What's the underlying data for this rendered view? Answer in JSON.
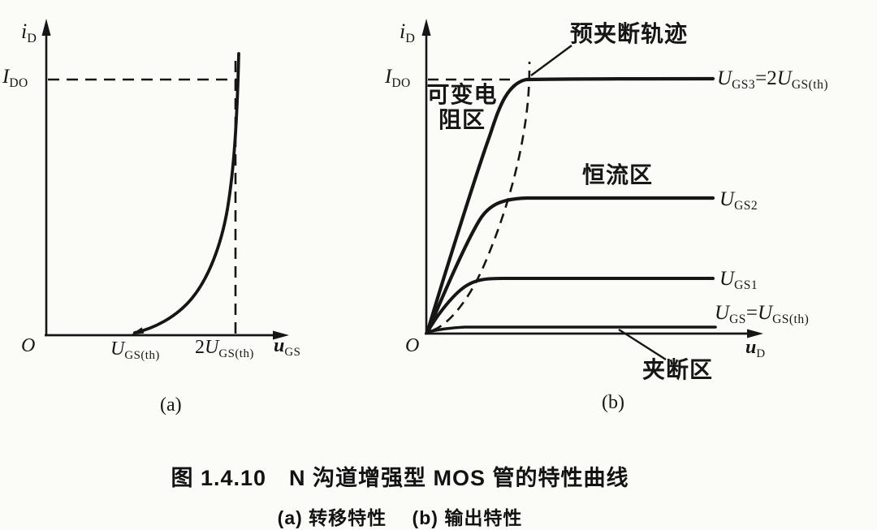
{
  "ink_color": "#161616",
  "paper_color": "#fbfbf8",
  "plot_a": {
    "y_axis_label": [
      {
        "i": "i"
      },
      {
        "sub": "D"
      }
    ],
    "y_tick": [
      {
        "i": "I"
      },
      {
        "sub": "DO"
      }
    ],
    "origin": "O",
    "x_tick_1": [
      {
        "i": "U"
      },
      {
        "sub": "GS(th)"
      }
    ],
    "x_tick_2": [
      "2",
      {
        "i": "U"
      },
      {
        "sub": "GS(th)"
      }
    ],
    "x_axis_label": [
      {
        "i": "u"
      },
      {
        "sub": "GS"
      }
    ],
    "sublabel": "(a)"
  },
  "plot_b": {
    "y_axis_label": [
      {
        "i": "i"
      },
      {
        "sub": "D"
      }
    ],
    "y_tick": [
      {
        "i": "I"
      },
      {
        "sub": "DO"
      }
    ],
    "origin": "O",
    "x_axis_label": [
      {
        "i": "u"
      },
      {
        "sub": "D"
      }
    ],
    "sublabel": "(b)",
    "locus_label": "预夹断轨迹",
    "region_variable_resistance": "可变电\n阻区",
    "region_constant_current": "恒流区",
    "region_pinch_off": "夹断区",
    "curve_label_3": [
      {
        "i": "U"
      },
      {
        "sub": "GS3"
      },
      "=2",
      {
        "i": "U"
      },
      {
        "sub": "GS(th)"
      }
    ],
    "curve_label_2": [
      {
        "i": "U"
      },
      {
        "sub": "GS2"
      }
    ],
    "curve_label_1": [
      {
        "i": "U"
      },
      {
        "sub": "GS1"
      }
    ],
    "curve_label_0": [
      {
        "i": "U"
      },
      {
        "sub": "GS"
      },
      "=",
      {
        "i": "U"
      },
      {
        "sub": "GS(th)"
      }
    ]
  },
  "caption": {
    "line1": "图 1.4.10　N 沟道增强型 MOS 管的特性曲线",
    "line2": "(a) 转移特性　 (b) 输出特性"
  },
  "chart_data": [
    {
      "type": "line",
      "title": "(a) 转移特性 (transfer characteristic of N-channel enhancement MOSFET)",
      "xlabel": "u_GS",
      "ylabel": "i_D",
      "x_tick_labels": [
        "O",
        "U_GS(th)",
        "2U_GS(th)"
      ],
      "y_tick_labels": [
        "I_DO"
      ],
      "grid": false,
      "series": [
        {
          "name": "i_D vs u_GS",
          "note": "square-law curve: i_D = 0 for u_GS < U_GS(th); i_D = I_DO at u_GS = 2U_GS(th)",
          "x_over_UGSth": [
            1.0,
            1.2,
            1.4,
            1.6,
            1.8,
            1.9,
            2.0
          ],
          "y_over_IDO": [
            0.0,
            0.04,
            0.16,
            0.36,
            0.64,
            0.81,
            1.0
          ]
        }
      ],
      "annotations": [
        "dashed guide at i_D = I_DO",
        "dashed guide at u_GS = 2U_GS(th)",
        "small arrow marks curve start at U_GS(th)"
      ]
    },
    {
      "type": "line",
      "title": "(b) 输出特性 (output characteristics)",
      "xlabel": "u_D",
      "ylabel": "i_D",
      "y_tick_labels": [
        "I_DO"
      ],
      "grid": false,
      "series": [
        {
          "name": "U_GS3 = 2U_GS(th)",
          "saturation_current_over_IDO": 1.0,
          "x_norm": [
            0,
            0.08,
            0.16,
            0.22,
            0.28,
            0.32,
            1.0
          ],
          "y_over_IDO": [
            0,
            0.45,
            0.78,
            0.93,
            0.99,
            1.0,
            1.0
          ]
        },
        {
          "name": "U_GS2",
          "saturation_current_over_IDO": 0.53,
          "x_norm": [
            0,
            0.08,
            0.16,
            0.24,
            0.32,
            1.0
          ],
          "y_over_IDO": [
            0,
            0.25,
            0.42,
            0.51,
            0.53,
            0.53
          ]
        },
        {
          "name": "U_GS1",
          "saturation_current_over_IDO": 0.22,
          "x_norm": [
            0,
            0.06,
            0.13,
            0.22,
            1.0
          ],
          "y_over_IDO": [
            0,
            0.1,
            0.18,
            0.22,
            0.22
          ]
        },
        {
          "name": "U_GS = U_GS(th)",
          "saturation_current_over_IDO": 0.03,
          "x_norm": [
            0,
            0.1,
            1.0
          ],
          "y_over_IDO": [
            0,
            0.02,
            0.03
          ]
        }
      ],
      "locus": {
        "name": "预夹断轨迹",
        "style": "dashed",
        "description": "pre-pinch-off locus through the knee points of all output curves"
      },
      "regions": [
        "可变电阻区 (left of locus)",
        "恒流区 (right of locus)",
        "夹断区 (along u_D axis, U_GS ≤ U_GS(th))"
      ]
    }
  ]
}
